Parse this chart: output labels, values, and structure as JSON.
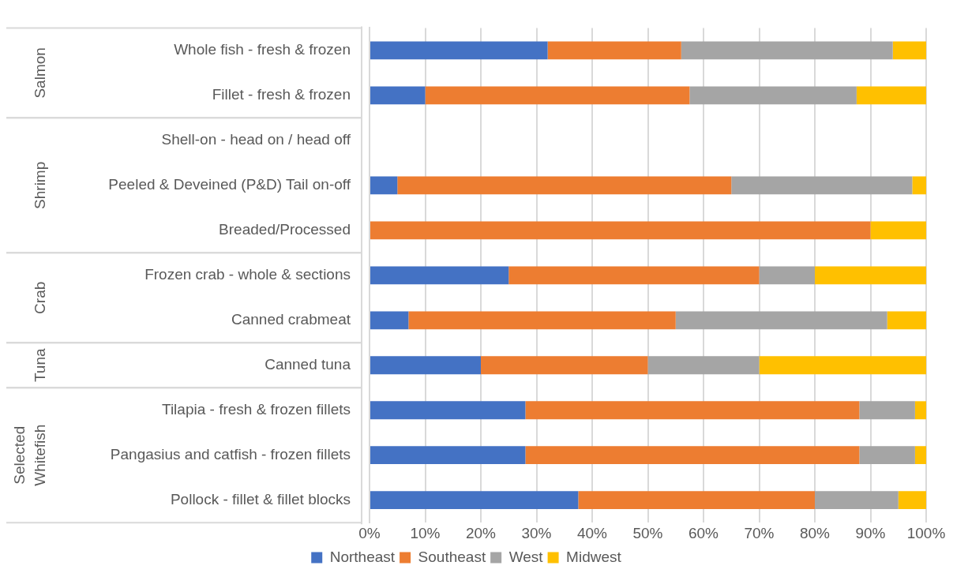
{
  "chart_data": {
    "type": "bar",
    "orientation": "horizontal",
    "stacked": true,
    "categories": [
      "Whole fish - fresh & frozen",
      "Fillet - fresh & frozen",
      "Shell-on - head on / head off",
      "Peeled & Deveined (P&D) Tail on-off",
      "Breaded/Processed",
      "Frozen crab - whole & sections",
      "Canned crabmeat",
      "Canned tuna",
      "Tilapia - fresh & frozen fillets",
      "Pangasius and catfish - frozen fillets",
      "Pollock - fillet & fillet blocks"
    ],
    "series": [
      {
        "name": "Northeast",
        "color": "#4472c4",
        "values": [
          32,
          10,
          null,
          5,
          0,
          25,
          7,
          20,
          28,
          28,
          37.5
        ]
      },
      {
        "name": "Southeast",
        "color": "#ed7d31",
        "values": [
          24,
          47.5,
          null,
          60,
          90,
          45,
          48,
          30,
          60,
          60,
          42.5
        ]
      },
      {
        "name": "West",
        "color": "#a5a5a5",
        "values": [
          38,
          30,
          null,
          32.5,
          0,
          10,
          38,
          20,
          10,
          10,
          15
        ]
      },
      {
        "name": "Midwest",
        "color": "#ffc000",
        "values": [
          6,
          12.5,
          null,
          2.5,
          10,
          20,
          7,
          30,
          2,
          2,
          5
        ]
      }
    ],
    "xlim": [
      0,
      100
    ],
    "xticks": [
      {
        "value": 0,
        "label": "0%"
      },
      {
        "value": 10,
        "label": "10%"
      },
      {
        "value": 20,
        "label": "20%"
      },
      {
        "value": 30,
        "label": "30%"
      },
      {
        "value": 40,
        "label": "40%"
      },
      {
        "value": 50,
        "label": "50%"
      },
      {
        "value": 60,
        "label": "60%"
      },
      {
        "value": 70,
        "label": "70%"
      },
      {
        "value": 80,
        "label": "80%"
      },
      {
        "value": 90,
        "label": "90%"
      },
      {
        "value": 100,
        "label": "100%"
      }
    ],
    "grid": "x",
    "legend": "bottom",
    "annotations": [
      "Salmon",
      "Shrimp",
      "Crab",
      "Tuna",
      "Selected Whitefish"
    ]
  }
}
